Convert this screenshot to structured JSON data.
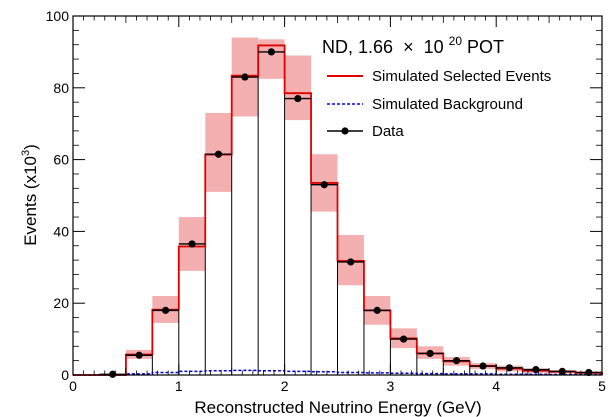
{
  "chart_data": {
    "type": "histogram",
    "header": {
      "prefix": "ND, 1.66",
      "times": "×",
      "base": "10",
      "exponent": "20",
      "suffix": " POT"
    },
    "xlabel": "Reconstructed Neutrino Energy (GeV)",
    "ylabel": {
      "main": "Events (x10",
      "exponent": "3",
      "close": ")"
    },
    "xlim": [
      0,
      5
    ],
    "ylim": [
      0,
      100
    ],
    "xticks": [
      0,
      1,
      2,
      3,
      4,
      5
    ],
    "yticks": [
      0,
      20,
      40,
      60,
      80,
      100
    ],
    "legend_position": "top-right",
    "legend": [
      {
        "label": "Simulated Selected Events",
        "style": "solid-line",
        "color": "#e00000"
      },
      {
        "label": "Simulated Background",
        "style": "dashed-line",
        "color": "#0000e0"
      },
      {
        "label": "Data",
        "style": "marker-errorbar",
        "color": "#000000"
      }
    ],
    "bin_edges": [
      0,
      0.25,
      0.5,
      0.75,
      1.0,
      1.25,
      1.5,
      1.75,
      2.0,
      2.25,
      2.5,
      2.75,
      3.0,
      3.25,
      3.5,
      3.75,
      4.0,
      4.25,
      4.5,
      4.75,
      5.0
    ],
    "series": [
      {
        "name": "Simulated Selected Events",
        "values": [
          0,
          0,
          5.7,
          18.2,
          35.8,
          61.4,
          83.4,
          91.8,
          78.5,
          53.5,
          31.8,
          18.0,
          10.2,
          6.0,
          3.8,
          2.5,
          1.8,
          1.2,
          0.9,
          0.6
        ],
        "band_low": [
          0,
          0,
          4.5,
          14.5,
          29.0,
          51.0,
          72.0,
          82.5,
          71.0,
          45.5,
          25.0,
          14.0,
          7.5,
          4.5,
          2.6,
          1.7,
          1.0,
          0.6,
          0.4,
          0.2
        ],
        "band_high": [
          0,
          0,
          7.0,
          22.0,
          44.0,
          73.0,
          94.0,
          93.5,
          89.0,
          61.5,
          39.0,
          22.0,
          13.0,
          8.0,
          5.0,
          3.3,
          2.6,
          1.8,
          1.4,
          1.0
        ],
        "color": "#e00000",
        "band_color": "#f4b0b0"
      },
      {
        "name": "Simulated Background",
        "values": [
          0,
          0,
          0.3,
          0.7,
          1.0,
          1.2,
          1.3,
          1.2,
          1.0,
          0.9,
          0.7,
          0.6,
          0.5,
          0.4,
          0.3,
          0.3,
          0.2,
          0.2,
          0.1,
          0.1
        ],
        "color": "#0000e0"
      },
      {
        "name": "Data",
        "x": [
          0.375,
          0.625,
          0.875,
          1.125,
          1.375,
          1.625,
          1.875,
          2.125,
          2.375,
          2.625,
          2.875,
          3.125,
          3.375,
          3.625,
          3.875,
          4.125,
          4.375,
          4.625,
          4.875
        ],
        "y": [
          0.2,
          5.5,
          18.0,
          36.5,
          61.5,
          83.0,
          90.0,
          77.0,
          53.0,
          31.5,
          18.0,
          10.0,
          6.0,
          4.0,
          2.5,
          2.0,
          1.5,
          1.0,
          0.7
        ],
        "color": "#000000"
      }
    ]
  }
}
